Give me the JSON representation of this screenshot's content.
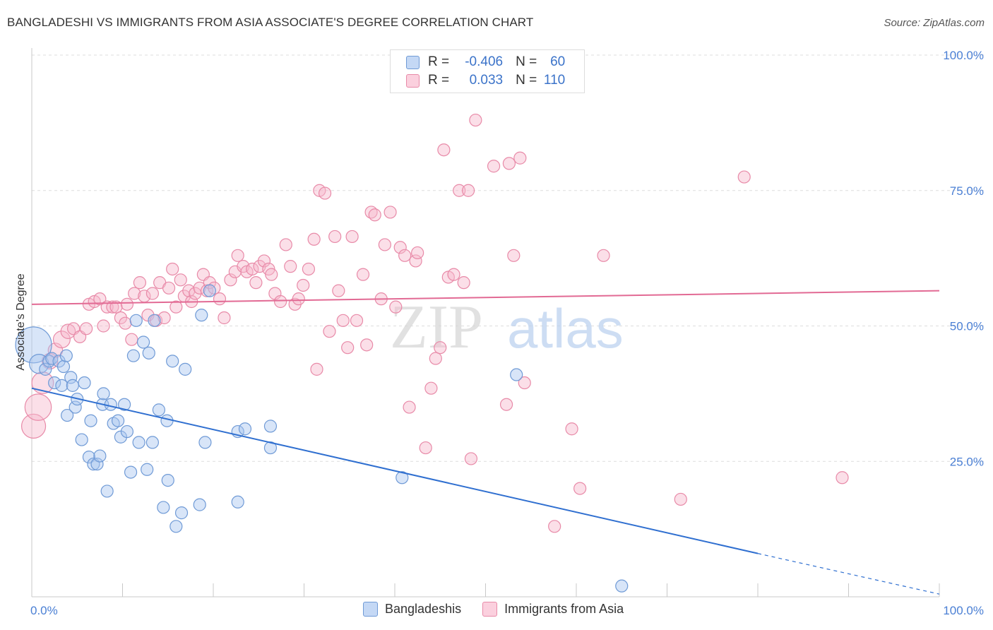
{
  "title": "BANGLADESHI VS IMMIGRANTS FROM ASIA ASSOCIATE'S DEGREE CORRELATION CHART",
  "source": "Source: ZipAtlas.com",
  "legend": {
    "row1": {
      "r_label": "R =",
      "r_value": "-0.406",
      "n_label": "N =",
      "n_value": "60"
    },
    "row2": {
      "r_label": "R =",
      "r_value": "0.033",
      "n_label": "N =",
      "n_value": "110"
    }
  },
  "bottom_legend": {
    "series1": "Bangladeshis",
    "series2": "Immigrants from Asia"
  },
  "colors": {
    "blue_fill": "#a9c6f0",
    "blue_stroke": "#6f9ad6",
    "blue_line": "#2f6fd0",
    "pink_fill": "#f6b8cc",
    "pink_stroke": "#e88aa8",
    "pink_line": "#e26a94",
    "grid": "#dddddd",
    "tick_text": "#4a7fd4"
  },
  "watermark": {
    "zip": "ZIP",
    "atlas": "atlas"
  },
  "chart_data": {
    "type": "scatter",
    "title": "BANGLADESHI VS IMMIGRANTS FROM ASIA ASSOCIATE'S DEGREE CORRELATION CHART",
    "xlabel": "",
    "ylabel": "Associate's Degree",
    "xlim": [
      0,
      100
    ],
    "ylim": [
      0,
      100
    ],
    "x_tick_labels": [
      "0.0%",
      "100.0%"
    ],
    "y_tick_labels": [
      {
        "value": 100,
        "label": "100.0%"
      },
      {
        "value": 75,
        "label": "75.0%"
      },
      {
        "value": 50,
        "label": "50.0%"
      },
      {
        "value": 25,
        "label": "25.0%"
      }
    ],
    "series": [
      {
        "name": "Bangladeshis",
        "r": -0.406,
        "n": 60,
        "trend": {
          "x0": 0,
          "y0": 38.5,
          "x1": 80,
          "y1": 8.0,
          "dashed_to_x": 100,
          "dashed_to_y": 0.5
        },
        "points": [
          [
            0.2,
            46.5,
            3
          ],
          [
            0.8,
            43.0,
            1.6
          ],
          [
            1.5,
            42.0,
            1
          ],
          [
            1.9,
            43.5,
            1
          ],
          [
            2.2,
            44.0,
            1
          ],
          [
            2.5,
            39.5,
            1
          ],
          [
            3.0,
            43.5,
            1
          ],
          [
            3.3,
            39.0,
            1
          ],
          [
            3.5,
            42.5,
            1
          ],
          [
            3.8,
            44.5,
            1
          ],
          [
            3.9,
            33.5,
            1
          ],
          [
            4.3,
            40.5,
            1
          ],
          [
            4.5,
            39.0,
            1
          ],
          [
            4.8,
            35.0,
            1
          ],
          [
            5.0,
            36.5,
            1
          ],
          [
            5.5,
            29.0,
            1
          ],
          [
            5.8,
            39.5,
            1
          ],
          [
            6.3,
            25.8,
            1
          ],
          [
            6.5,
            32.5,
            1
          ],
          [
            6.8,
            24.5,
            1
          ],
          [
            7.2,
            24.5,
            1
          ],
          [
            7.5,
            26.0,
            1
          ],
          [
            7.8,
            35.5,
            1
          ],
          [
            7.9,
            37.5,
            1
          ],
          [
            8.3,
            19.5,
            1
          ],
          [
            8.7,
            35.5,
            1
          ],
          [
            9.0,
            32.0,
            1
          ],
          [
            9.5,
            32.5,
            1
          ],
          [
            9.8,
            29.5,
            1
          ],
          [
            10.2,
            35.5,
            1
          ],
          [
            10.5,
            30.5,
            1
          ],
          [
            10.9,
            23.0,
            1
          ],
          [
            11.2,
            44.5,
            1
          ],
          [
            11.5,
            51.0,
            1
          ],
          [
            11.8,
            28.5,
            1
          ],
          [
            12.3,
            47.0,
            1
          ],
          [
            12.7,
            23.5,
            1
          ],
          [
            12.9,
            45.0,
            1
          ],
          [
            13.3,
            28.5,
            1
          ],
          [
            13.5,
            51.0,
            1
          ],
          [
            14.0,
            34.5,
            1
          ],
          [
            14.5,
            16.5,
            1
          ],
          [
            14.9,
            32.5,
            1
          ],
          [
            15.0,
            21.5,
            1
          ],
          [
            15.5,
            43.5,
            1
          ],
          [
            15.9,
            13.0,
            1
          ],
          [
            16.5,
            15.5,
            1
          ],
          [
            16.9,
            42.0,
            1
          ],
          [
            18.5,
            17.0,
            1
          ],
          [
            18.7,
            52.0,
            1
          ],
          [
            19.1,
            28.5,
            1
          ],
          [
            19.6,
            56.5,
            1
          ],
          [
            22.7,
            17.5,
            1
          ],
          [
            22.7,
            30.5,
            1
          ],
          [
            23.5,
            31.0,
            1
          ],
          [
            26.3,
            31.5,
            1
          ],
          [
            26.3,
            27.5,
            1
          ],
          [
            40.8,
            22.0,
            1
          ],
          [
            53.4,
            41.0,
            1
          ],
          [
            65.0,
            2.0,
            1
          ]
        ]
      },
      {
        "name": "Immigrants from Asia",
        "r": 0.033,
        "n": 110,
        "trend": {
          "x0": 0,
          "y0": 54.0,
          "x1": 100,
          "y1": 56.5
        },
        "points": [
          [
            0.2,
            31.5,
            2
          ],
          [
            0.7,
            35.0,
            2.2
          ],
          [
            1.2,
            39.5,
            1.8
          ],
          [
            2.0,
            43.5,
            1.3
          ],
          [
            2.6,
            45.5,
            1.2
          ],
          [
            3.3,
            47.5,
            1.4
          ],
          [
            4.0,
            49.0,
            1.2
          ],
          [
            4.6,
            49.5,
            1
          ],
          [
            5.3,
            48.0,
            1
          ],
          [
            6.0,
            49.5,
            1
          ],
          [
            6.3,
            54.0,
            1
          ],
          [
            6.9,
            54.5,
            1
          ],
          [
            7.5,
            55.0,
            1
          ],
          [
            7.9,
            50.0,
            1
          ],
          [
            8.3,
            53.5,
            1
          ],
          [
            8.9,
            53.5,
            1
          ],
          [
            9.3,
            53.5,
            1
          ],
          [
            9.8,
            51.5,
            1
          ],
          [
            10.3,
            50.5,
            1
          ],
          [
            10.5,
            54.0,
            1
          ],
          [
            11.0,
            47.5,
            1
          ],
          [
            11.3,
            56.0,
            1
          ],
          [
            11.9,
            58.0,
            1
          ],
          [
            12.4,
            55.5,
            1
          ],
          [
            12.8,
            52.0,
            1
          ],
          [
            13.3,
            56.0,
            1
          ],
          [
            13.7,
            51.0,
            1
          ],
          [
            14.1,
            58.0,
            1
          ],
          [
            14.6,
            51.5,
            1
          ],
          [
            15.1,
            57.0,
            1
          ],
          [
            15.5,
            60.5,
            1
          ],
          [
            15.9,
            53.5,
            1
          ],
          [
            16.4,
            58.5,
            1
          ],
          [
            16.8,
            55.5,
            1
          ],
          [
            17.3,
            56.5,
            1
          ],
          [
            17.6,
            54.5,
            1
          ],
          [
            18.0,
            56.0,
            1
          ],
          [
            18.5,
            57.0,
            1
          ],
          [
            18.9,
            59.5,
            1
          ],
          [
            19.3,
            56.5,
            1
          ],
          [
            19.6,
            58.0,
            1
          ],
          [
            20.1,
            57.0,
            1
          ],
          [
            20.7,
            55.0,
            1
          ],
          [
            21.2,
            51.5,
            1
          ],
          [
            21.9,
            58.5,
            1
          ],
          [
            22.4,
            60.0,
            1
          ],
          [
            22.7,
            63.0,
            1
          ],
          [
            23.3,
            61.0,
            1
          ],
          [
            23.7,
            60.0,
            1
          ],
          [
            24.3,
            60.5,
            1
          ],
          [
            24.7,
            58.0,
            1
          ],
          [
            25.1,
            61.0,
            1
          ],
          [
            25.6,
            62.0,
            1
          ],
          [
            26.1,
            60.5,
            1
          ],
          [
            26.4,
            59.5,
            1
          ],
          [
            26.8,
            56.0,
            1
          ],
          [
            27.4,
            54.5,
            1
          ],
          [
            28.0,
            65.0,
            1
          ],
          [
            28.5,
            61.0,
            1
          ],
          [
            29.0,
            54.0,
            1
          ],
          [
            29.4,
            55.0,
            1
          ],
          [
            29.9,
            57.5,
            1
          ],
          [
            30.5,
            60.5,
            1
          ],
          [
            31.1,
            66.0,
            1
          ],
          [
            31.4,
            42.0,
            1
          ],
          [
            31.7,
            75.0,
            1
          ],
          [
            32.3,
            74.5,
            1
          ],
          [
            32.8,
            49.0,
            1
          ],
          [
            33.4,
            66.5,
            1
          ],
          [
            33.8,
            56.5,
            1
          ],
          [
            34.3,
            51.0,
            1
          ],
          [
            34.8,
            46.0,
            1
          ],
          [
            35.3,
            66.5,
            1
          ],
          [
            35.8,
            51.0,
            1
          ],
          [
            36.5,
            59.5,
            1
          ],
          [
            36.9,
            46.5,
            1
          ],
          [
            37.4,
            71.0,
            1
          ],
          [
            37.8,
            70.5,
            1
          ],
          [
            38.5,
            55.0,
            1
          ],
          [
            38.9,
            65.0,
            1
          ],
          [
            39.5,
            71.0,
            1
          ],
          [
            40.1,
            53.5,
            1
          ],
          [
            40.6,
            64.5,
            1
          ],
          [
            41.1,
            63.0,
            1
          ],
          [
            41.6,
            35.0,
            1
          ],
          [
            42.3,
            62.0,
            1
          ],
          [
            42.5,
            63.5,
            1
          ],
          [
            43.4,
            27.5,
            1
          ],
          [
            44.0,
            38.5,
            1
          ],
          [
            44.5,
            44.0,
            1
          ],
          [
            45.0,
            46.0,
            1
          ],
          [
            45.4,
            82.5,
            1
          ],
          [
            45.9,
            59.0,
            1
          ],
          [
            46.5,
            59.5,
            1
          ],
          [
            47.1,
            75.0,
            1
          ],
          [
            47.6,
            58.0,
            1
          ],
          [
            48.1,
            75.0,
            1
          ],
          [
            48.4,
            25.5,
            1
          ],
          [
            48.9,
            88.0,
            1
          ],
          [
            50.9,
            79.5,
            1
          ],
          [
            52.3,
            35.5,
            1
          ],
          [
            52.6,
            80.0,
            1
          ],
          [
            53.1,
            63.0,
            1
          ],
          [
            53.8,
            81.0,
            1
          ],
          [
            54.3,
            39.5,
            1
          ],
          [
            57.6,
            13.0,
            1
          ],
          [
            59.5,
            31.0,
            1
          ],
          [
            60.4,
            20.0,
            1
          ],
          [
            63.0,
            63.0,
            1
          ],
          [
            71.5,
            18.0,
            1
          ],
          [
            78.5,
            77.5,
            1
          ],
          [
            89.3,
            22.0,
            1
          ]
        ]
      }
    ]
  }
}
